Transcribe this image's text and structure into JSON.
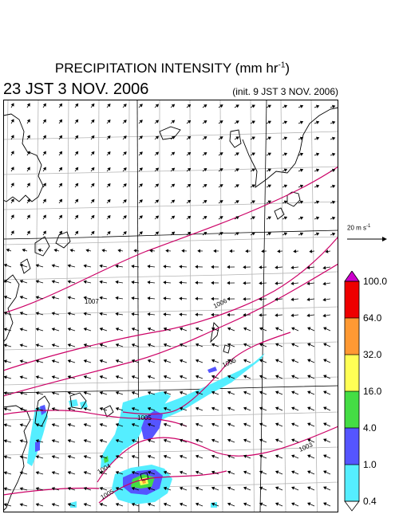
{
  "header": {
    "title": "PRECIPITATION INTENSITY (mm hr",
    "title_sup": "-1",
    "title_end": ")",
    "valid_time": "23 JST 3 NOV. 2006",
    "init_time": "(init. 9 JST 3 NOV. 2006)"
  },
  "map": {
    "isobar_labels": [
      "1007",
      "1006",
      "1005",
      "1005",
      "1004",
      "1003",
      "1005"
    ],
    "wind_reference": {
      "label": "20 m s",
      "sup": "-1"
    },
    "colors": {
      "isobar": "#cc0066",
      "grid": "#b4b4b4",
      "coast": "#000000"
    }
  },
  "colorbar": {
    "labels": [
      "100.0",
      "64.0",
      "32.0",
      "16.0",
      "4.0",
      "1.0",
      "0.4"
    ],
    "colors": [
      "#cc00cc",
      "#ee0000",
      "#ff9933",
      "#ffff55",
      "#44dd44",
      "#5555ff",
      "#55eeff"
    ]
  }
}
